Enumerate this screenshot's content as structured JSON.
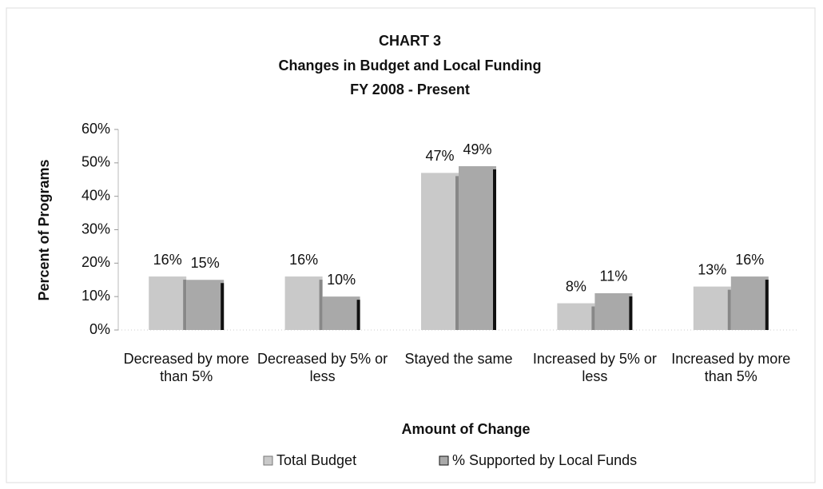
{
  "chart_data": {
    "type": "bar",
    "title": [
      "CHART 3",
      "Changes in Budget and Local Funding",
      "FY 2008 - Present"
    ],
    "x_label": "Amount of Change",
    "y_label": "Percent of Programs",
    "categories": [
      "Decreased by more than 5%",
      "Decreased by 5% or less",
      "Stayed the same",
      "Increased by 5% or less",
      "Increased by more than 5%"
    ],
    "series": [
      {
        "name": "Total Budget",
        "color": "#c9c9c9",
        "values": [
          16,
          16,
          47,
          8,
          13
        ],
        "value_labels": [
          "16%",
          "16%",
          "47%",
          "8%",
          "13%"
        ]
      },
      {
        "name": "% Supported by Local Funds",
        "color": "#a9a9a9",
        "values": [
          15,
          10,
          49,
          11,
          16
        ],
        "value_labels": [
          "15%",
          "10%",
          "49%",
          "11%",
          "16%"
        ]
      }
    ],
    "ylim": [
      0,
      60
    ],
    "yticks": [
      {
        "value": 0,
        "label": "0%"
      },
      {
        "value": 10,
        "label": "10%"
      },
      {
        "value": 20,
        "label": "20%"
      },
      {
        "value": 30,
        "label": "30%"
      },
      {
        "value": 40,
        "label": "40%"
      },
      {
        "value": 50,
        "label": "50%"
      },
      {
        "value": 60,
        "label": "60%"
      }
    ],
    "legend": "bottom"
  }
}
